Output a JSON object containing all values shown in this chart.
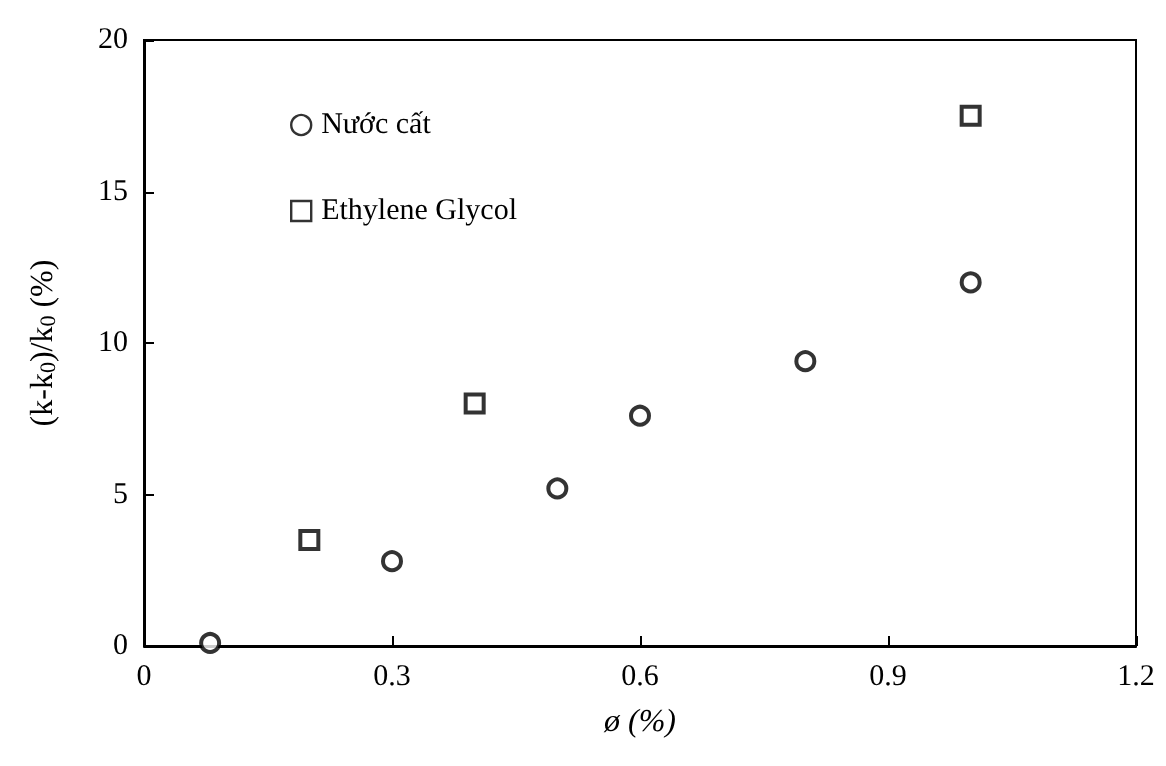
{
  "chart_data": {
    "type": "scatter",
    "xlabel": "ø (%)",
    "ylabel": "(k-k$_{0}$)/k$_{0}$ (%)",
    "xlim": [
      0,
      1.2
    ],
    "xticks": [
      0,
      0.3,
      0.6,
      0.9,
      1.2
    ],
    "ylim": [
      0,
      20
    ],
    "yticks": [
      0,
      5,
      10,
      15,
      20
    ],
    "grid": false,
    "legend": "top left",
    "series": [
      {
        "name": "Nước cất",
        "color": "#000000",
        "marker": "circle",
        "x": [
          0.08,
          0.3,
          0.5,
          0.6,
          0.8,
          1.0
        ],
        "values": [
          0.1,
          2.8,
          5.2,
          7.6,
          9.4,
          12.0
        ]
      },
      {
        "name": "Ethylene Glycol",
        "color": "#000000",
        "marker": "square",
        "x": [
          0.2,
          0.4,
          1.0
        ],
        "values": [
          3.5,
          8.0,
          17.5
        ]
      }
    ]
  }
}
